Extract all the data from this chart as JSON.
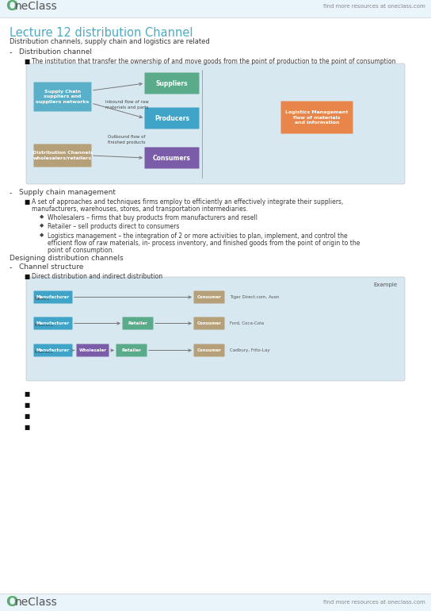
{
  "title": "Lecture 12 distribution Channel",
  "subtitle": "Distribution channels, supply chain and logistics are related",
  "bg_color": "#ffffff",
  "header_color": "#4bacc6",
  "oneclass_color": "#5aab6d",
  "font_color": "#3a3a3a",
  "gray_text": "#888888",
  "header_bg": "#eaf4fb",
  "diagram1_bg": "#d8e8f0",
  "diagram2_bg": "#d8e8f0",
  "suppliers_color": "#5aab8a",
  "producers_color": "#3fa4c8",
  "consumers_color": "#7a5ca8",
  "supply_chain_color": "#5ab0c8",
  "dist_channel_color": "#b5a07a",
  "logistics_color": "#e8854a",
  "manufacturer_color": "#3fa4c8",
  "retailer_color": "#5aab8a",
  "consumer_color": "#b5a07a",
  "wholesaler_color": "#7a5ca8",
  "section1_item1": "The institution that transfer the ownership of and move goods from the point of production to the point of consumption",
  "section2_header": "Supply chain management",
  "section2_item1_line1": "A set of approaches and techniques firms employ to efficiently an effectively integrate their suppliers,",
  "section2_item1_line2": "manufacturers, warehouses, stores, and transportation intermediaries.",
  "sub1": "Wholesalers – firms that buy products from manufacturers and resell",
  "sub2": "Retailer – sell products direct to consumers",
  "sub3_line1": "Logistics management – the integration of 2 or more activities to plan, implement, and control the",
  "sub3_line2": "efficient flow of raw materials, in- process inventory, and finished goods from the point of origin to the",
  "sub3_line3": "point of consumption.",
  "section3_header": "Designing distribution channels",
  "section3_sub": "Channel structure",
  "section3_item": "Direct distribution and indirect distribution",
  "example1": "Tiger Direct.com, Avon",
  "example2": "Ford, Coca-Cola",
  "example3": "Cadbury, Frito-Lay",
  "footer_text": "find more resources at oneclass.com"
}
